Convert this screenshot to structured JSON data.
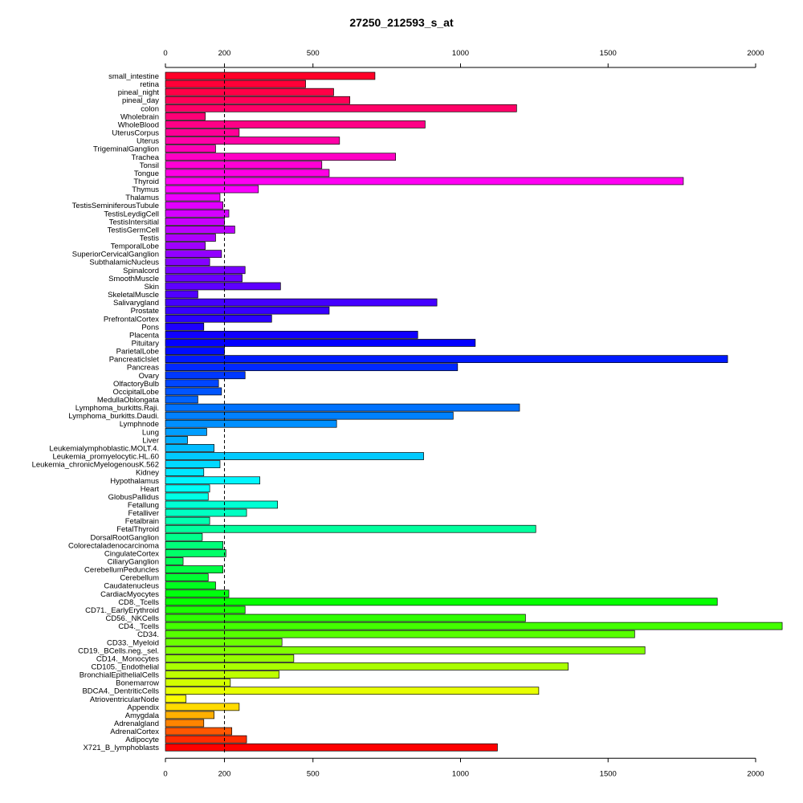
{
  "chart_data": {
    "type": "bar",
    "orientation": "horizontal",
    "title": "27250_212593_s_at",
    "xlim": [
      0,
      2100
    ],
    "ticks": [
      0,
      200,
      500,
      1000,
      1500,
      2000
    ],
    "reference_line": 200,
    "categories": [
      "small_intestine",
      "retina",
      "pineal_night",
      "pineal_day",
      "colon",
      "Wholebrain",
      "WholeBlood",
      "UterusCorpus",
      "Uterus",
      "TrigeminalGanglion",
      "Trachea",
      "Tonsil",
      "Tongue",
      "Thyroid",
      "Thymus",
      "Thalamus",
      "TestisSeminiferousTubule",
      "TestisLeydigCell",
      "TestisIntersitial",
      "TestisGermCell",
      "Testis",
      "TemporalLobe",
      "SuperiorCervicalGanglion",
      "SubthalamicNucleus",
      "Spinalcord",
      "SmoothMuscle",
      "Skin",
      "SkeletalMuscle",
      "Salivarygland",
      "Prostate",
      "PrefrontalCortex",
      "Pons",
      "Placenta",
      "Pituitary",
      "ParietalLobe",
      "PancreaticIslet",
      "Pancreas",
      "Ovary",
      "OlfactoryBulb",
      "OccipitalLobe",
      "MedullaOblongata",
      "Lymphoma_burkitts.Raji.",
      "Lymphoma_burkitts.Daudi.",
      "Lymphnode",
      "Lung",
      "Liver",
      "Leukemialymphoblastic.MOLT.4.",
      "Leukemia_promyelocytic.HL.60",
      "Leukemia_chronicMyelogenousK.562",
      "Kidney",
      "Hypothalamus",
      "Heart",
      "GlobusPallidus",
      "Fetallung",
      "Fetalliver",
      "Fetalbrain",
      "FetalThyroid",
      "DorsalRootGanglion",
      "Colorectaladenocarcinoma",
      "CingulateCortex",
      "CiliaryGanglion",
      "CerebellumPeduncles",
      "Cerebellum",
      "Caudatenucleus",
      "CardiacMyocytes",
      "CD8._Tcells",
      "CD71._EarlyErythroid",
      "CD56._NKCells",
      "CD4._Tcells",
      "CD34.",
      "CD33._Myeloid",
      "CD19._BCells.neg._sel.",
      "CD14._Monocytes",
      "CD105._Endothelial",
      "BronchialEpithelialCells",
      "Bonemarrow",
      "BDCA4._DentriticCells",
      "AtrioventricularNode",
      "Appendix",
      "Amygdala",
      "Adrenalgland",
      "AdrenalCortex",
      "Adipocyte",
      "X721_B_lymphoblasts"
    ],
    "values": [
      710,
      475,
      570,
      625,
      1190,
      135,
      880,
      250,
      590,
      170,
      780,
      530,
      555,
      1755,
      315,
      185,
      195,
      215,
      200,
      235,
      170,
      135,
      190,
      150,
      270,
      260,
      390,
      110,
      920,
      555,
      360,
      130,
      855,
      1050,
      200,
      1905,
      990,
      270,
      180,
      190,
      110,
      1200,
      975,
      580,
      140,
      75,
      165,
      875,
      185,
      130,
      320,
      150,
      145,
      380,
      275,
      150,
      1255,
      125,
      195,
      205,
      60,
      195,
      145,
      170,
      215,
      1870,
      270,
      1220,
      2090,
      1590,
      395,
      1625,
      435,
      1365,
      385,
      220,
      1265,
      70,
      250,
      165,
      130,
      225,
      275,
      1125
    ],
    "colors": [
      "#ff0028",
      "#ff0033",
      "#ff003d",
      "#ff0047",
      "#ff0052",
      "#ff005c",
      "#ff0066",
      "#ff0070",
      "#ff007a",
      "#ff0085",
      "#ff008f",
      "#ff0099",
      "#ff00a3",
      "#ff00ad",
      "#ff00b8",
      "#ff00c2",
      "#ff00cc",
      "#ff00d6",
      "#ff00e0",
      "#ff00eb",
      "#ff00f5",
      "#ff00ff",
      "#f500ff",
      "#eb00ff",
      "#e000ff",
      "#d600ff",
      "#cc00ff",
      "#c200ff",
      "#b800ff",
      "#ad00ff",
      "#a300ff",
      "#9900ff",
      "#8f00ff",
      "#8500ff",
      "#7a00ff",
      "#7000ff",
      "#6600ff",
      "#5c00ff",
      "#5200ff",
      "#4700ff",
      "#3d00ff",
      "#3300ff",
      "#2800ff",
      "#1f00ff",
      "#1400ff",
      "#0a00ff",
      "#0000ff",
      "#000aff",
      "#0014ff",
      "#001fff",
      "#0028ff",
      "#0033ff",
      "#003dff",
      "#0047ff",
      "#0052ff",
      "#005cff",
      "#0066ff",
      "#0070ff",
      "#007aff",
      "#0085ff",
      "#008fff",
      "#0099ff",
      "#00a3ff",
      "#00adff",
      "#00b8ff",
      "#00c2ff",
      "#00ccff",
      "#00d6ff",
      "#00e0ff",
      "#00ebff",
      "#00f5ff",
      "#00fff5",
      "#00ffeb",
      "#00ffe0",
      "#00ffd6",
      "#00ffcc",
      "#00ffc2",
      "#00ffb8",
      "#00ffad",
      "#00ffa3",
      "#00ff99",
      "#00ff8f",
      "#00ff85",
      "#00ff7a"
    ]
  }
}
